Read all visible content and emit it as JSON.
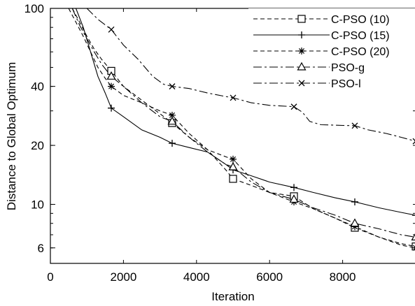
{
  "chart_data": {
    "type": "line",
    "title": "",
    "xlabel": "Iteration",
    "ylabel": "Distance to Global Optimum",
    "xlim": [
      0,
      10000
    ],
    "ylim": [
      5,
      100
    ],
    "yscale": "log",
    "xticks": [
      "0",
      "2000",
      "4000",
      "6000",
      "8000"
    ],
    "yticks": [
      "6",
      "10",
      "20",
      "40",
      "100"
    ],
    "xtick_values": [
      0,
      2000,
      4000,
      6000,
      8000
    ],
    "ytick_values": [
      6,
      10,
      20,
      40,
      100
    ],
    "grid": false,
    "legend_position": "top-right",
    "series": [
      {
        "name": "C-PSO (10)",
        "style": "dashed",
        "marker": "square",
        "color": "#000000",
        "x": [
          600,
          800,
          1000,
          1200,
          1400,
          1667,
          2000,
          2500,
          3000,
          3333,
          3800,
          4300,
          4800,
          5000,
          5500,
          6000,
          6667,
          7200,
          7800,
          8333,
          9000,
          9600,
          10000
        ],
        "y": [
          100,
          85,
          72,
          62,
          55,
          48,
          40,
          34,
          29,
          26,
          22,
          19,
          15,
          13.5,
          12.5,
          11.5,
          11,
          9.5,
          8.5,
          7.6,
          6.8,
          6.3,
          6.1
        ],
        "marker_x": [
          1667,
          3333,
          5000,
          6667,
          8333,
          10000
        ],
        "marker_y": [
          48,
          26,
          13.5,
          11,
          7.6,
          6.1
        ]
      },
      {
        "name": "C-PSO (15)",
        "style": "solid",
        "marker": "plus",
        "color": "#000000",
        "x": [
          700,
          900,
          1100,
          1300,
          1500,
          1667,
          2000,
          2500,
          3000,
          3333,
          3800,
          4300,
          4800,
          5000,
          5500,
          6000,
          6667,
          7200,
          7800,
          8333,
          9000,
          9600,
          10000
        ],
        "y": [
          100,
          80,
          60,
          45,
          37,
          31,
          28,
          24,
          22,
          20.5,
          19.5,
          18.5,
          16,
          15,
          14,
          13,
          12.2,
          11.5,
          10.8,
          10.3,
          9.6,
          9.1,
          8.8
        ],
        "marker_x": [
          1667,
          3333,
          5000,
          6667,
          8333,
          10000
        ],
        "marker_y": [
          31,
          20.5,
          15,
          12.2,
          10.3,
          8.8
        ]
      },
      {
        "name": "C-PSO (20)",
        "style": "dashed",
        "marker": "asterisk",
        "color": "#000000",
        "x": [
          500,
          700,
          900,
          1100,
          1300,
          1500,
          1667,
          2000,
          2500,
          3000,
          3333,
          3800,
          4300,
          4800,
          5000,
          5500,
          6000,
          6667,
          7200,
          7800,
          8333,
          9000,
          9600,
          10000
        ],
        "y": [
          100,
          85,
          72,
          60,
          50,
          44,
          40,
          36,
          33,
          30,
          28.5,
          23,
          19,
          17.5,
          17,
          13.5,
          11.5,
          10.3,
          9.5,
          8.5,
          7.7,
          6.8,
          6.2,
          6.0
        ],
        "marker_x": [
          1667,
          3333,
          5000,
          6667,
          8333,
          10000
        ],
        "marker_y": [
          40,
          28.5,
          17,
          10.3,
          7.7,
          6.0
        ]
      },
      {
        "name": "PSO-g",
        "style": "dashdot",
        "marker": "triangle",
        "color": "#000000",
        "x": [
          600,
          800,
          1000,
          1200,
          1400,
          1667,
          2000,
          2500,
          3000,
          3333,
          3800,
          4300,
          4800,
          5000,
          5500,
          6000,
          6667,
          7200,
          7800,
          8333,
          9000,
          9600,
          10000
        ],
        "y": [
          100,
          82,
          70,
          60,
          52,
          45,
          40,
          33,
          28,
          26.5,
          22,
          18.5,
          16,
          15.5,
          13,
          11.5,
          10.6,
          9.6,
          8.8,
          8.0,
          7.5,
          7.0,
          6.8
        ],
        "marker_x": [
          1667,
          3333,
          5000,
          6667,
          8333,
          10000
        ],
        "marker_y": [
          45,
          26.5,
          15.5,
          10.6,
          8.0,
          6.8
        ]
      },
      {
        "name": "PSO-l",
        "style": "dashdot",
        "marker": "x",
        "color": "#000000",
        "x": [
          1000,
          1300,
          1667,
          2000,
          2400,
          2800,
          3100,
          3333,
          3800,
          4300,
          4800,
          5000,
          5500,
          6000,
          6667,
          6900,
          7100,
          7400,
          8000,
          8333,
          8700,
          9200,
          9600,
          10000
        ],
        "y": [
          100,
          88,
          78,
          65,
          55,
          45,
          41,
          40,
          39,
          37,
          35.5,
          35,
          33,
          32,
          31.5,
          29.5,
          26.5,
          25.5,
          25.3,
          25.2,
          24,
          23,
          22,
          21
        ],
        "marker_x": [
          1667,
          3333,
          5000,
          6667,
          8333,
          10000
        ],
        "marker_y": [
          78,
          40,
          35,
          31.5,
          25.2,
          21
        ]
      }
    ]
  }
}
